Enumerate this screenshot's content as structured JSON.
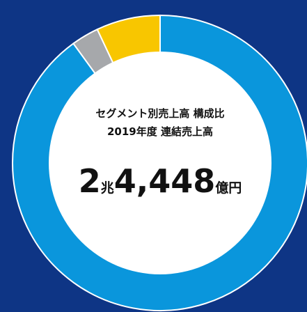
{
  "chart_data": {
    "type": "donut",
    "title": "セグメント別売上高 構成比",
    "subtitle": "2019年度 連結売上高",
    "total": [
      "2",
      "兆",
      "4,448",
      "億円"
    ],
    "values": [
      90,
      3,
      7
    ],
    "colors": [
      "#0a96dc",
      "#a6a8ab",
      "#f8c600"
    ]
  }
}
